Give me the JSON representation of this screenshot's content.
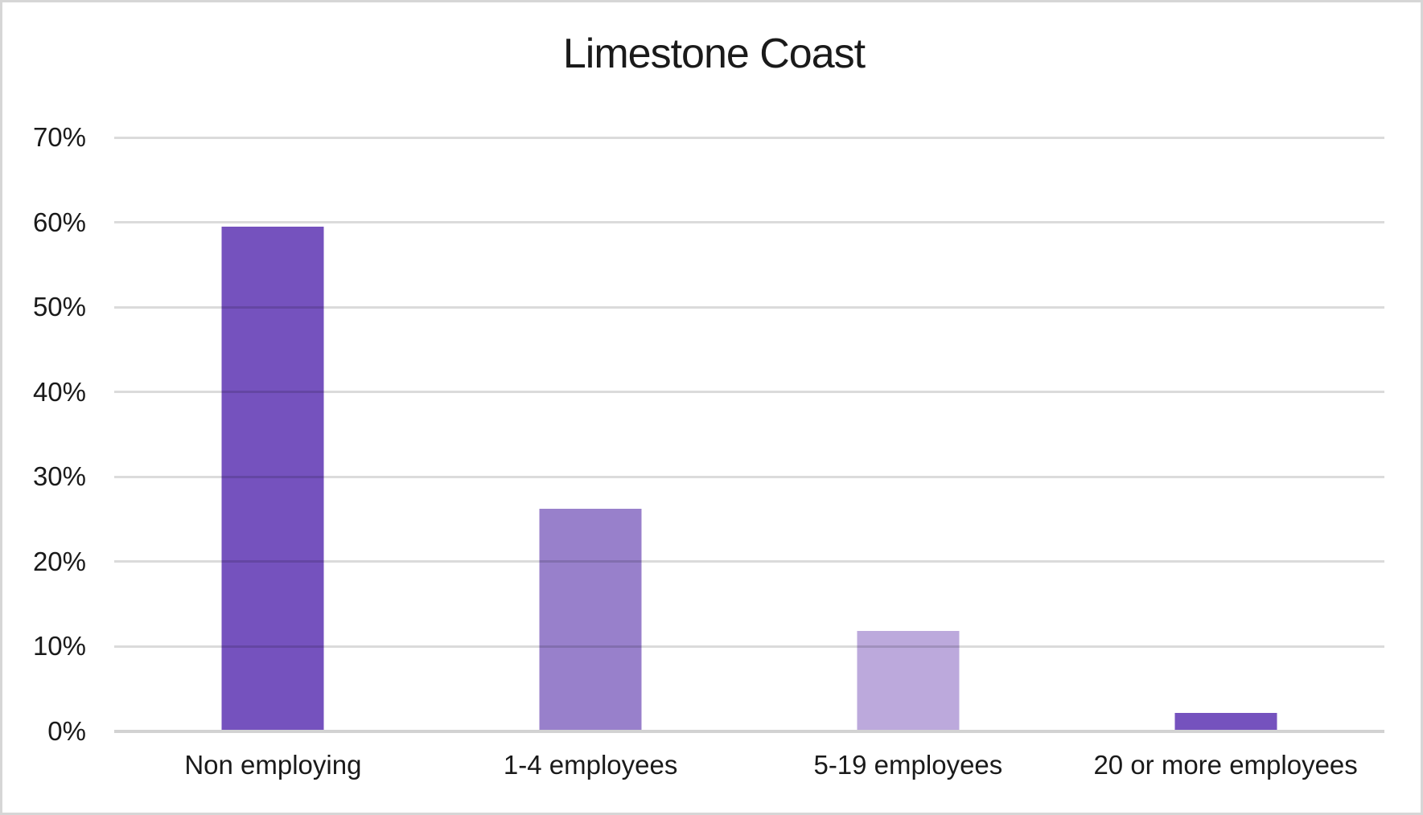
{
  "chart_data": {
    "type": "bar",
    "title": "Limestone Coast",
    "categories": [
      "Non employing",
      "1-4 employees",
      "5-19 employees",
      "20 or more employees"
    ],
    "values": [
      59.5,
      26.2,
      11.8,
      2.2
    ],
    "value_unit": "%",
    "bar_colors": [
      "#7552BE",
      "#9880CB",
      "#BCA9DC",
      "#7552BE"
    ],
    "xlabel": "",
    "ylabel": "",
    "ylim": [
      0,
      70
    ],
    "y_tick_step": 10,
    "y_tick_labels": [
      "0%",
      "10%",
      "20%",
      "30%",
      "40%",
      "50%",
      "60%",
      "70%"
    ],
    "grid": "horizontal",
    "legend": "none"
  },
  "colors": {
    "background": "#FFFFFF",
    "chart_border": "#D6D6D6",
    "gridline": "#DBDBDB",
    "axis_line": "#D2D2D2",
    "text": "#1A1A1A"
  }
}
